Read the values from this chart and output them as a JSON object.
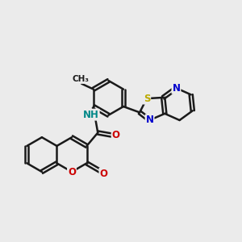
{
  "bg_color": "#ebebeb",
  "bond_color": "#1a1a1a",
  "bond_width": 1.8,
  "dbo": 0.07,
  "atom_colors": {
    "O": "#cc0000",
    "N": "#0000cc",
    "S": "#bbaa00",
    "NH": "#008888",
    "C": "#1a1a1a"
  },
  "font_size": 8.5,
  "fig_size": [
    3.0,
    3.0
  ],
  "dpi": 100
}
